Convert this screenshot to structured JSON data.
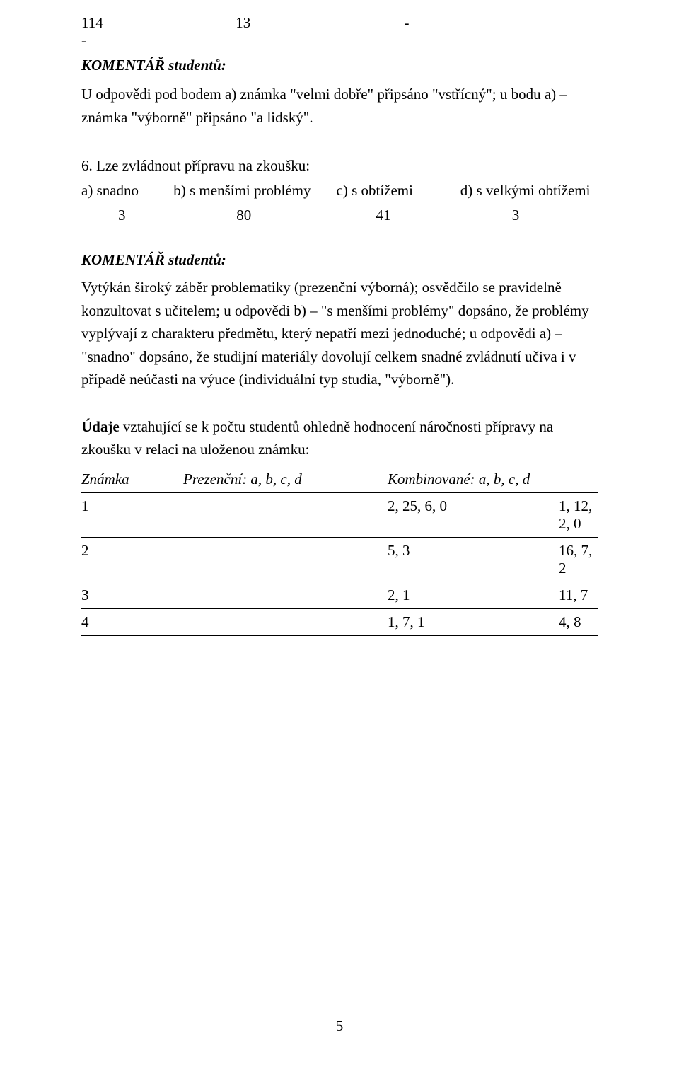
{
  "top_row": {
    "v1": "114",
    "v2": "13",
    "v3": "-",
    "v4": "-"
  },
  "komentar_label": "KOMENTÁŘ studentů:",
  "komentar1_text": "U odpovědi pod bodem a) známka \"velmi dobře\" připsáno \"vstřícný\"; u bodu a) – známka \"výborně\" připsáno \"a lidský\".",
  "q6": {
    "label": "6. Lze zvládnout přípravu na zkoušku:",
    "options": {
      "a": "a) snadno",
      "b": "b) s menšími problémy",
      "c": "c)  s obtížemi",
      "d": "d) s velkými obtížemi"
    },
    "nums": {
      "n1": "3",
      "n2": "80",
      "n3": "41",
      "n4": "3"
    }
  },
  "komentar2_text": "Vytýkán široký záběr problematiky (prezenční výborná); osvědčilo se pravidelně konzultovat s učitelem; u odpovědi b) – \"s menšími problémy\" dopsáno, že problémy vyplývají z charakteru předmětu, který nepatří mezi jednoduché; u odpovědi a) – \"snadno\" dopsáno, že studijní materiály dovolují celkem snadné zvládnutí učiva  i v případě neúčasti na výuce (individuální typ studia, \"výborně\").",
  "udaje_intro": "Údaje vztahující se k počtu studentů ohledně hodnocení náročnosti přípravy na zkoušku v relaci na uloženou známku:",
  "table": {
    "h1": "Známka",
    "h2": "Prezenční: a,  b,  c, d",
    "h3": "Kombinované: a,  b,  c,  d",
    "rows": [
      {
        "c1": "1",
        "c3": "2, 25,  6, 0",
        "c4": "1, 12, 2, 0"
      },
      {
        "c1": "2",
        "c3": "5, 3",
        "c4": "16, 7, 2"
      },
      {
        "c1": "3",
        "c3": "2, 1",
        "c4": "11, 7"
      },
      {
        "c1": "4",
        "c3": "1, 7, 1",
        "c4": "  4, 8"
      }
    ]
  },
  "page_number": "5"
}
